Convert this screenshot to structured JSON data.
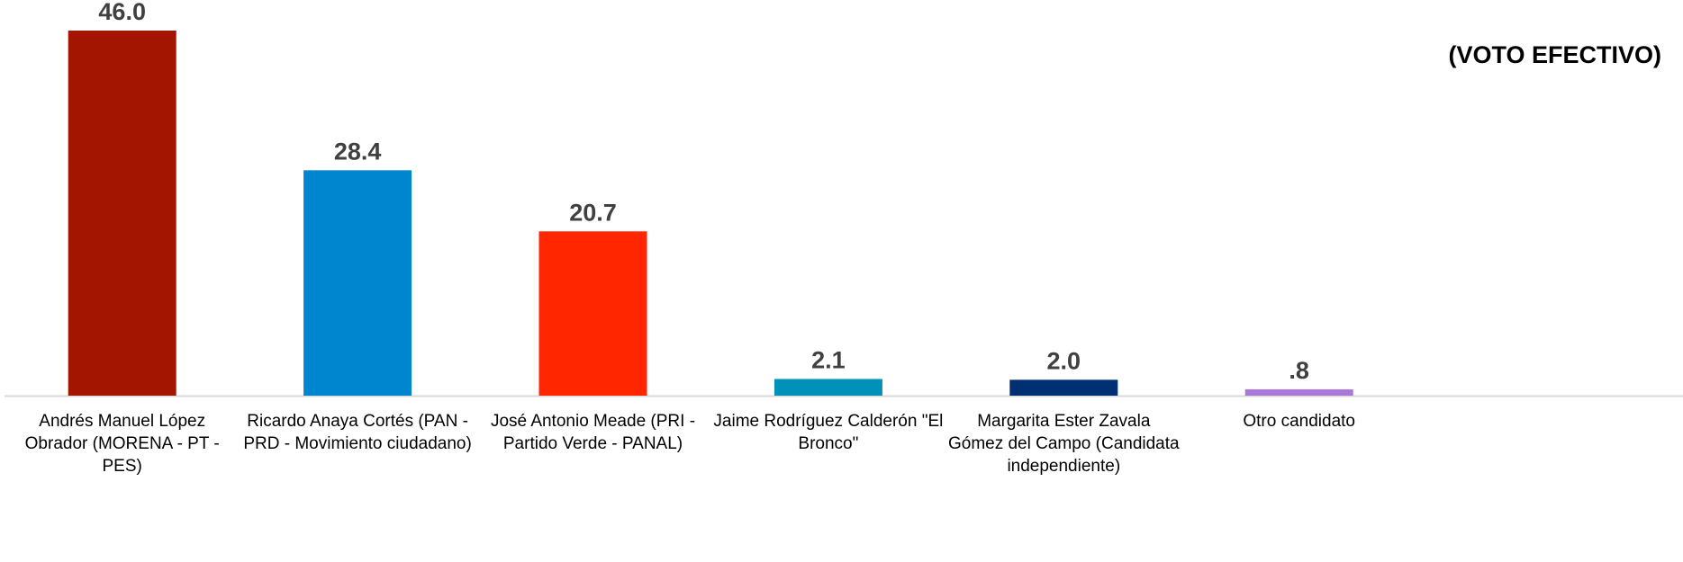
{
  "chart_data": {
    "type": "bar",
    "title": "(VOTO EFECTIVO)",
    "categories": [
      "Andrés Manuel López Obrador (MORENA - PT - PES)",
      "Ricardo Anaya Cortés (PAN - PRD - Movimiento ciudadano)",
      "José Antonio Meade (PRI - Partido Verde - PANAL)",
      "Jaime Rodríguez Calderón \"El Bronco\"",
      "Margarita Ester Zavala Gómez del Campo (Candidata independiente)",
      "Otro candidato"
    ],
    "values": [
      46.0,
      28.4,
      20.7,
      2.1,
      2.0,
      0.8
    ],
    "value_labels": [
      "46.0",
      "28.4",
      "20.7",
      "2.1",
      "2.0",
      ".8"
    ],
    "colors": [
      "#a31500",
      "#0085cf",
      "#ff2600",
      "#0090b8",
      "#003072",
      "#a978d8"
    ]
  }
}
